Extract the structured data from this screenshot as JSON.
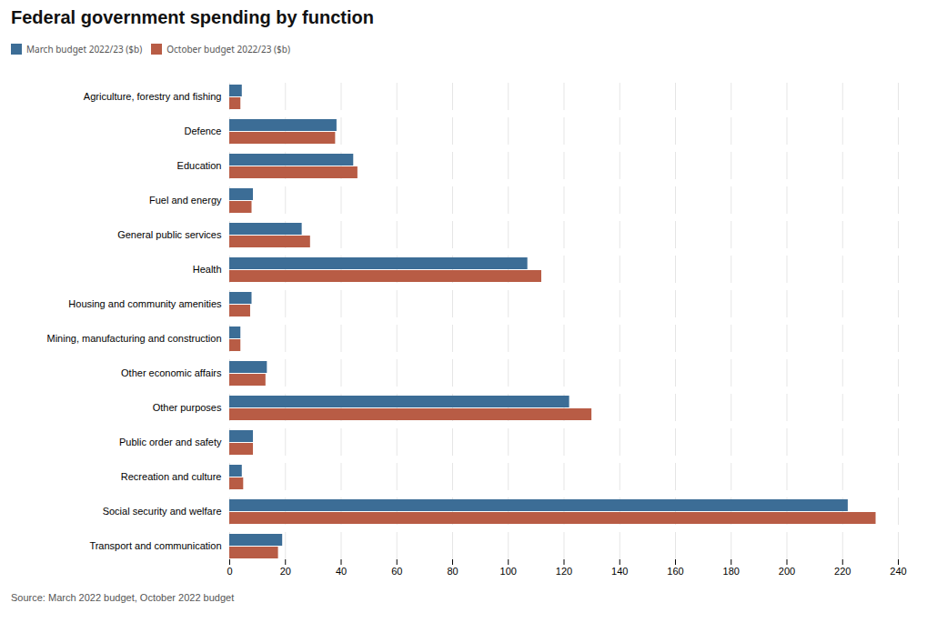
{
  "chart_data": {
    "type": "bar",
    "orientation": "horizontal",
    "title": "Federal government spending by function",
    "caption": "Source: March 2022 budget, October 2022 budget",
    "categories": [
      "Agriculture, forestry and fishing",
      "Defence",
      "Education",
      "Fuel and energy",
      "General public services",
      "Health",
      "Housing and community amenities",
      "Mining, manufacturing and construction",
      "Other economic affairs",
      "Other purposes",
      "Public order and safety",
      "Recreation and culture",
      "Social security and welfare",
      "Transport and communication"
    ],
    "series": [
      {
        "name": "March budget 2022/23 ($b)",
        "color": "#3c6d96",
        "values": [
          4.5,
          38.5,
          44.5,
          8.5,
          26.0,
          107.0,
          8.0,
          4.0,
          13.5,
          122.0,
          8.5,
          4.5,
          222.0,
          19.0
        ]
      },
      {
        "name": "October budget 2022/23 ($b)",
        "color": "#b85c45",
        "values": [
          4.0,
          38.0,
          46.0,
          8.0,
          29.0,
          112.0,
          7.5,
          4.0,
          13.0,
          130.0,
          8.5,
          5.0,
          232.0,
          17.5
        ]
      }
    ],
    "xlim": [
      0,
      240
    ],
    "xticks": [
      0,
      20,
      40,
      60,
      80,
      100,
      120,
      140,
      160,
      180,
      200,
      220,
      240
    ],
    "grid": true,
    "legend": "upper left"
  }
}
